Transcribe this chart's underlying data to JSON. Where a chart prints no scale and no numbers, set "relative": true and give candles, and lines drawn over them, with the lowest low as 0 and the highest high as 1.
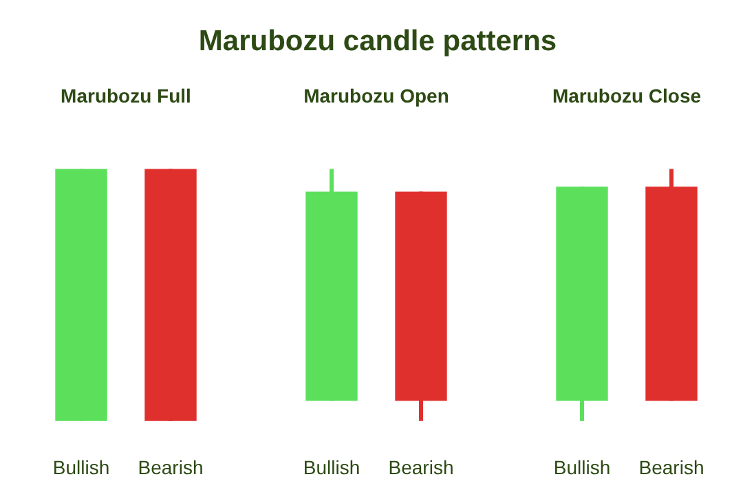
{
  "chart_data": [
    {
      "type": "other",
      "title": "Marubozu candle patterns"
    },
    {
      "type": "candlestick",
      "title": "Marubozu Full",
      "relative": true,
      "categories": [
        "Bullish",
        "Bearish"
      ],
      "colors": [
        "#5ce05c",
        "#e0302e"
      ],
      "ohlc": [
        [
          0,
          1,
          0,
          1
        ],
        [
          1,
          1,
          0,
          0
        ]
      ]
    },
    {
      "type": "candlestick",
      "title": "Marubozu Open",
      "relative": true,
      "categories": [
        "Bullish",
        "Bearish"
      ],
      "colors": [
        "#5ce05c",
        "#e0302e"
      ],
      "ohlc": [
        [
          0.08,
          1,
          0.08,
          0.91
        ],
        [
          0.91,
          0.91,
          0,
          0.08
        ]
      ]
    },
    {
      "type": "candlestick",
      "title": "Marubozu Close",
      "relative": true,
      "categories": [
        "Bullish",
        "Bearish"
      ],
      "colors": [
        "#5ce05c",
        "#e0302e"
      ],
      "ohlc": [
        [
          0.08,
          0.93,
          0,
          0.93
        ],
        [
          0.93,
          1,
          0.08,
          0.08
        ]
      ]
    }
  ]
}
